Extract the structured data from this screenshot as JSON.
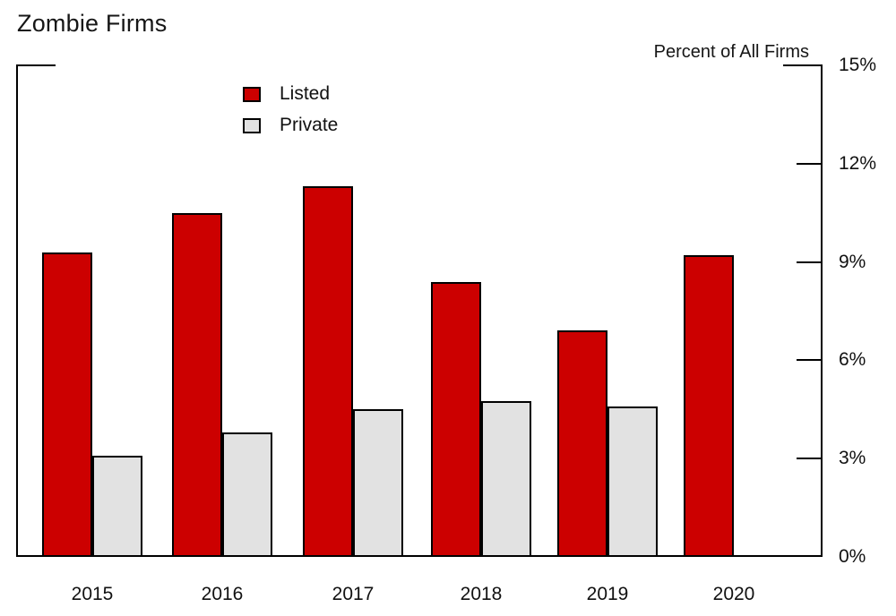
{
  "header": {
    "title": "Zombie Firms"
  },
  "chart_data": {
    "type": "bar",
    "title": "Zombie Firms",
    "ylabel": "Percent of All Firms",
    "xlabel": "",
    "categories": [
      "2015",
      "2016",
      "2017",
      "2018",
      "2019",
      "2020"
    ],
    "series": [
      {
        "name": "Listed",
        "color": "#CC0000",
        "values": [
          9.3,
          10.5,
          11.3,
          8.4,
          6.9,
          9.2
        ]
      },
      {
        "name": "Private",
        "color": "#E2E2E2",
        "values": [
          3.1,
          3.8,
          4.5,
          4.75,
          4.6,
          null
        ]
      }
    ],
    "ylim": [
      0,
      15
    ],
    "ytick_values": [
      0,
      3,
      6,
      9,
      12,
      15
    ],
    "ytick_labels": [
      "0%",
      "3%",
      "6%",
      "9%",
      "12%",
      "15%"
    ],
    "axis_side": "right",
    "grid": false,
    "legend_position": "inside-top-left",
    "axis_color": "#000000",
    "background_color": "#ffffff"
  }
}
